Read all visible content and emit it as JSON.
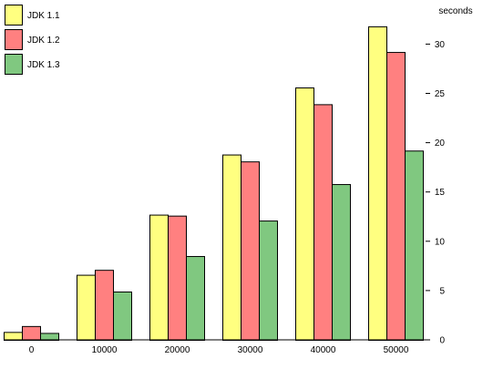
{
  "chart_data": {
    "type": "bar",
    "categories": [
      "0",
      "10000",
      "20000",
      "30000",
      "40000",
      "50000"
    ],
    "series": [
      {
        "name": "JDK 1.1",
        "color": "#ffff80",
        "values": [
          0.8,
          6.6,
          12.7,
          18.8,
          25.6,
          31.8
        ]
      },
      {
        "name": "JDK 1.2",
        "color": "#ff8080",
        "values": [
          1.4,
          7.1,
          12.6,
          18.1,
          23.9,
          29.2
        ]
      },
      {
        "name": "JDK 1.3",
        "color": "#80c880",
        "values": [
          0.7,
          4.9,
          8.5,
          12.1,
          15.8,
          19.2
        ]
      }
    ],
    "ylabel": "seconds",
    "ylim": [
      0,
      35
    ],
    "yticks": [
      0,
      5,
      10,
      15,
      20,
      25,
      30
    ],
    "ytick_labels": [
      "0",
      "5",
      "10",
      "15",
      "20",
      "25",
      "30"
    ],
    "y_axis_position": "right",
    "legend_position": "top-left",
    "grid": false
  }
}
